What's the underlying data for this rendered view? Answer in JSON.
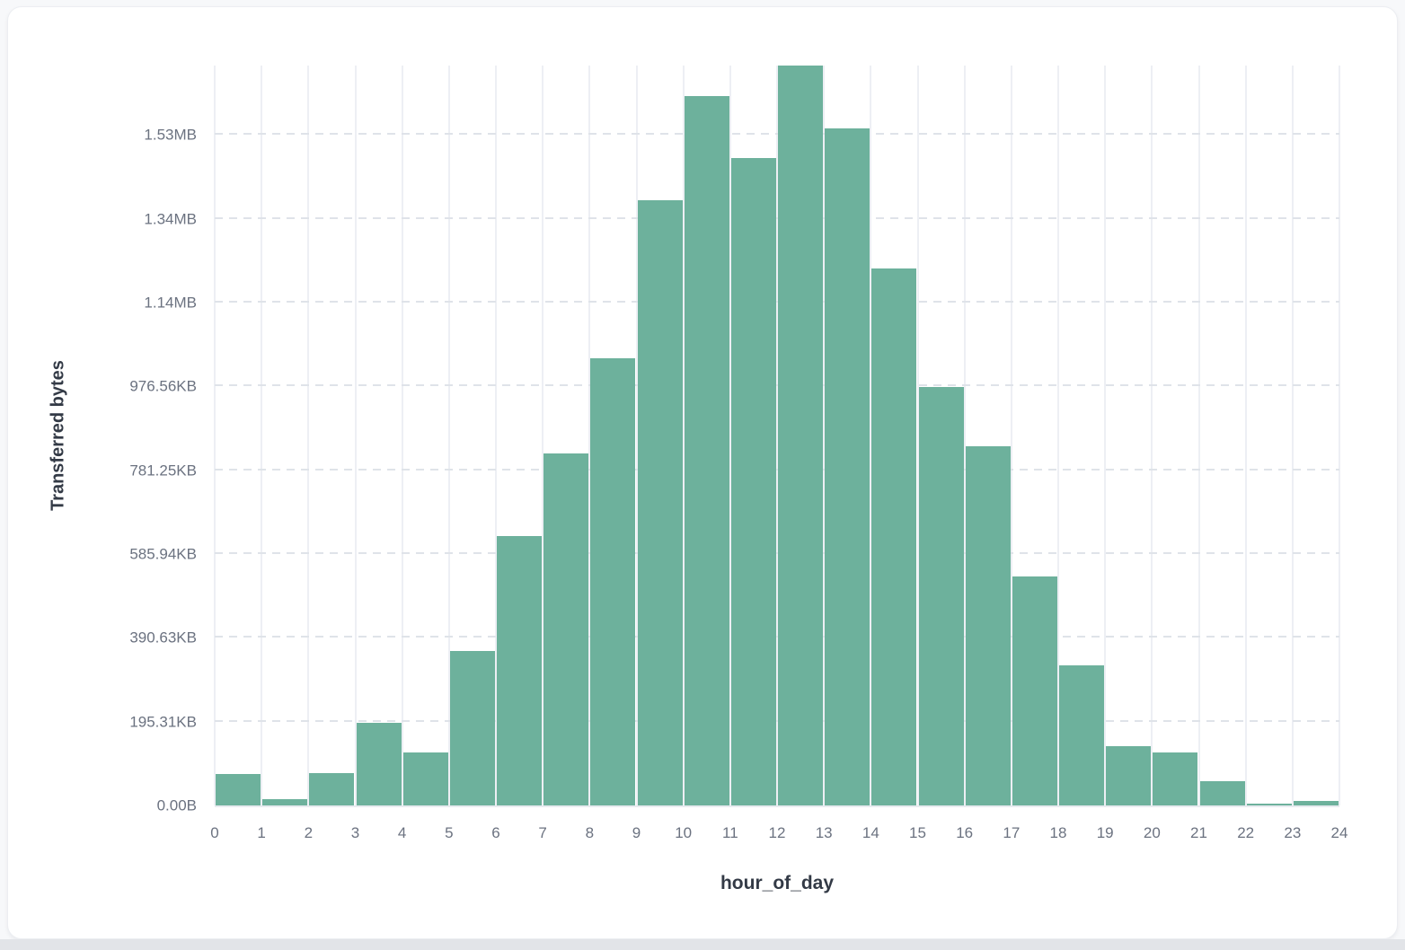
{
  "colors": {
    "bar": "#6DB19C",
    "axis_tick_label": "#6B7280",
    "axis_title": "#333A46",
    "grid_vertical": "#EDEFF4",
    "grid_horizontal": "#DFE3E9",
    "card_background": "#FFFFFF",
    "page_background": "#F7F8FA",
    "bottom_strip": "#E2E4E8"
  },
  "chart_data": {
    "type": "bar",
    "variant": "histogram",
    "title": "",
    "xlabel": "hour_of_day",
    "ylabel": "Transferred bytes",
    "legend_position": "none",
    "grid": {
      "vertical": "solid",
      "horizontal": "dashed"
    },
    "x_tick_labels": [
      "0",
      "1",
      "2",
      "3",
      "4",
      "5",
      "6",
      "7",
      "8",
      "9",
      "10",
      "11",
      "12",
      "13",
      "14",
      "15",
      "16",
      "17",
      "18",
      "19",
      "20",
      "21",
      "22",
      "23",
      "24"
    ],
    "y_tick_labels": [
      "0.00B",
      "195.31KB",
      "390.63KB",
      "585.94KB",
      "781.25KB",
      "976.56KB",
      "1.14MB",
      "1.34MB",
      "1.53MB"
    ],
    "y_tick_bytes": [
      0,
      200000,
      400000,
      600000,
      800000,
      1000000,
      1200000,
      1400000,
      1600000
    ],
    "y_axis_max_bytes": 1766000,
    "x_bin_edges": [
      0,
      1,
      2,
      3,
      4,
      5,
      6,
      7,
      8,
      9,
      10,
      11,
      12,
      13,
      14,
      15,
      16,
      17,
      18,
      19,
      20,
      21,
      22,
      23,
      24
    ],
    "series": [
      {
        "name": "Transferred bytes",
        "unit": "bytes",
        "values": [
          74000,
          15000,
          77000,
          197000,
          126000,
          368000,
          643000,
          840000,
          1068000,
          1444000,
          1693000,
          1546000,
          1766000,
          1616000,
          1281000,
          999000,
          858000,
          547000,
          334000,
          141000,
          126000,
          57000,
          5000,
          11000
        ]
      }
    ],
    "bar_color": "#6DB19C"
  }
}
